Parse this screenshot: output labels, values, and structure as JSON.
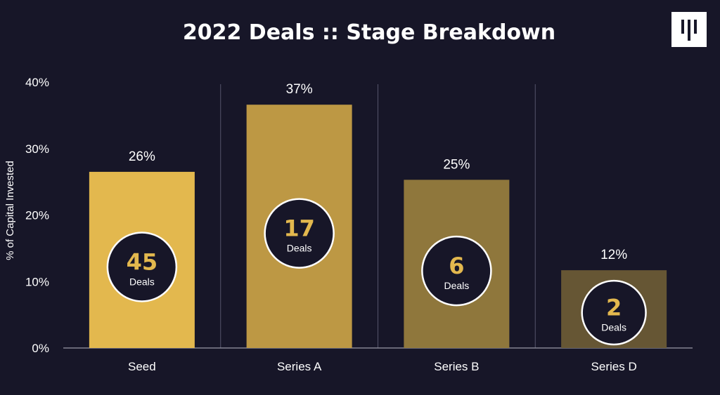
{
  "chart_data": {
    "type": "bar",
    "title": "2022 Deals :: Stage Breakdown",
    "ylabel": "% of Capital Invested",
    "xlabel": "",
    "ylim": [
      0,
      40
    ],
    "yticks": [
      "0%",
      "10%",
      "20%",
      "30%",
      "40%"
    ],
    "categories": [
      "Seed",
      "Series A",
      "Series B",
      "Series D"
    ],
    "values": [
      26.5,
      36.6,
      25.3,
      11.7
    ],
    "value_labels": [
      "26%",
      "37%",
      "25%",
      "12%"
    ],
    "deal_counts": [
      "45",
      "17",
      "6",
      "2"
    ],
    "deal_unit": "Deals",
    "bar_colors": [
      "#e3b84e",
      "#bd9844",
      "#8f773c",
      "#665634"
    ],
    "count_color": "#e3b84e",
    "background": "#171628",
    "grid": false
  },
  "logo": {
    "name": "logo-icon"
  }
}
